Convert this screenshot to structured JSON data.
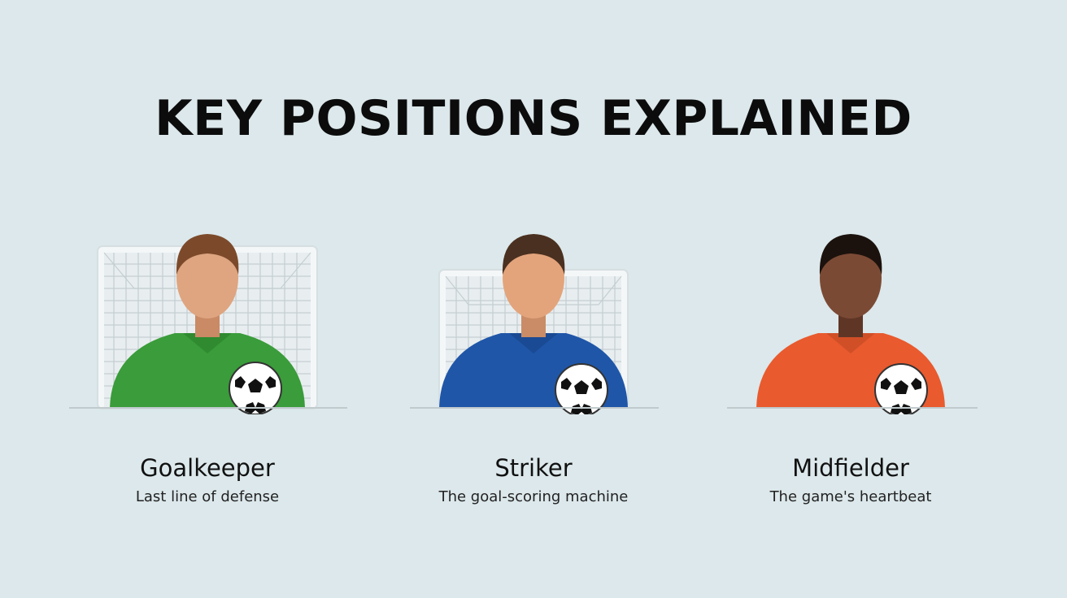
{
  "title": "KEY POSITIONS EXPLAINED",
  "positions": [
    {
      "name": "Goalkeeper",
      "description": "Last line of defense",
      "jersey_color": "#3a9c3a",
      "skin_color": "#dea580",
      "hair_color": "#7c4a2b",
      "goal_visible": true
    },
    {
      "name": "Striker",
      "description": "The goal-scoring machine",
      "jersey_color": "#1f56a8",
      "skin_color": "#e3a47c",
      "hair_color": "#4a3020",
      "goal_visible": true
    },
    {
      "name": "Midfielder",
      "description": "The game's heartbeat",
      "jersey_color": "#e95a2e",
      "skin_color": "#7b4a35",
      "hair_color": "#1c120d",
      "goal_visible": false
    }
  ],
  "colors": {
    "background": "#dce8eb",
    "goal_frame": "#f3f6f7",
    "net": "#c3cdd0",
    "ground_line": "#c0cacd"
  }
}
